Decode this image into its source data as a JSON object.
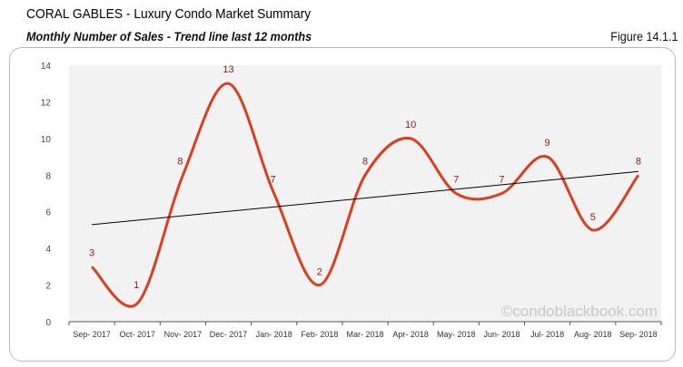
{
  "header": {
    "title": "CORAL GABLES - Luxury Condo Market Summary",
    "subtitle": "Monthly Number of Sales - Trend line last 12 months",
    "figure": "Figure 14.1.1"
  },
  "watermark": "©condoblackbook.com",
  "chart_data": {
    "type": "line",
    "categories": [
      "Sep- 2017",
      "Oct- 2017",
      "Nov- 2017",
      "Dec- 2017",
      "Jan- 2018",
      "Feb- 2018",
      "Mar- 2018",
      "Apr- 2018",
      "May- 2018",
      "Jun- 2018",
      "Jul- 2018",
      "Aug- 2018",
      "Sep- 2018"
    ],
    "values": [
      3,
      1,
      8,
      13,
      7,
      2,
      8,
      10,
      7,
      7,
      9,
      5,
      8
    ],
    "trendline": {
      "start": 5.3,
      "end": 8.2,
      "color": "#000000"
    },
    "ylim": [
      0,
      14
    ],
    "yticks": [
      0,
      2,
      4,
      6,
      8,
      10,
      12,
      14
    ],
    "line_color": "#d9401f",
    "label_color": "#8b1a1a",
    "plot_background": "#f2f2f2",
    "smooth": true,
    "grid": false
  }
}
